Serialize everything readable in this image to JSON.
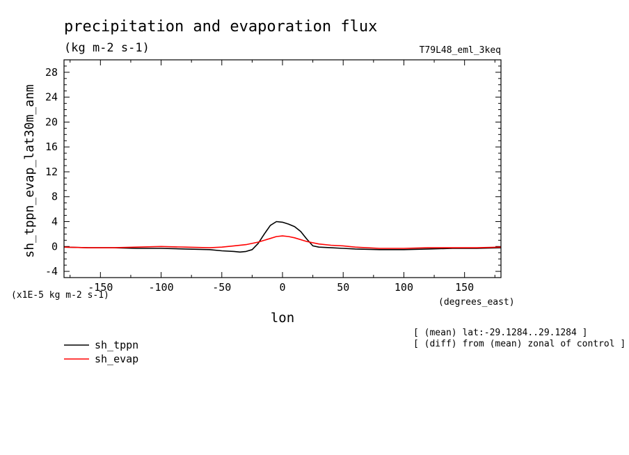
{
  "chart_data": {
    "type": "line",
    "title": "precipitation and evaporation flux",
    "subtitle": "(kg m-2 s-1)",
    "run_label": "T79L48_eml_3keq",
    "xlabel": "lon",
    "x_units": "(degrees_east)",
    "ylabel": "sh_tppn_evap_lat30m_anm",
    "y_scale_note": "(x1E-5 kg m-2 s-1)",
    "xlim": [
      -180,
      180
    ],
    "ylim": [
      -5,
      30
    ],
    "x_ticks": [
      -150,
      -100,
      -50,
      0,
      50,
      100,
      150
    ],
    "y_ticks": [
      -4,
      0,
      4,
      8,
      12,
      16,
      20,
      24,
      28
    ],
    "grid": false,
    "legend_position": "bottom-left",
    "notes": [
      "[ (mean) lat:-29.1284..29.1284 ]",
      "[ (diff) from (mean) zonal of control ]"
    ],
    "series": [
      {
        "name": "sh_tppn",
        "color": "#000000",
        "x": [
          -180,
          -160,
          -140,
          -120,
          -100,
          -80,
          -60,
          -50,
          -40,
          -35,
          -30,
          -25,
          -20,
          -15,
          -10,
          -5,
          0,
          5,
          10,
          15,
          20,
          25,
          30,
          40,
          50,
          60,
          80,
          100,
          120,
          140,
          160,
          180
        ],
        "y": [
          -0.1,
          -0.2,
          -0.2,
          -0.3,
          -0.3,
          -0.4,
          -0.5,
          -0.7,
          -0.8,
          -0.9,
          -0.8,
          -0.5,
          0.5,
          2.0,
          3.4,
          4.0,
          3.9,
          3.6,
          3.2,
          2.4,
          1.2,
          0.1,
          -0.1,
          -0.2,
          -0.3,
          -0.4,
          -0.5,
          -0.5,
          -0.4,
          -0.3,
          -0.3,
          -0.2
        ]
      },
      {
        "name": "sh_evap",
        "color": "#ff0000",
        "x": [
          -180,
          -160,
          -140,
          -120,
          -100,
          -80,
          -60,
          -50,
          -40,
          -30,
          -20,
          -10,
          -5,
          0,
          5,
          10,
          20,
          30,
          40,
          50,
          60,
          80,
          100,
          120,
          140,
          160,
          180
        ],
        "y": [
          -0.1,
          -0.2,
          -0.2,
          -0.1,
          0.0,
          -0.1,
          -0.2,
          -0.1,
          0.1,
          0.3,
          0.7,
          1.3,
          1.6,
          1.7,
          1.6,
          1.4,
          0.8,
          0.4,
          0.2,
          0.1,
          -0.1,
          -0.3,
          -0.3,
          -0.2,
          -0.2,
          -0.2,
          -0.1
        ]
      }
    ]
  }
}
